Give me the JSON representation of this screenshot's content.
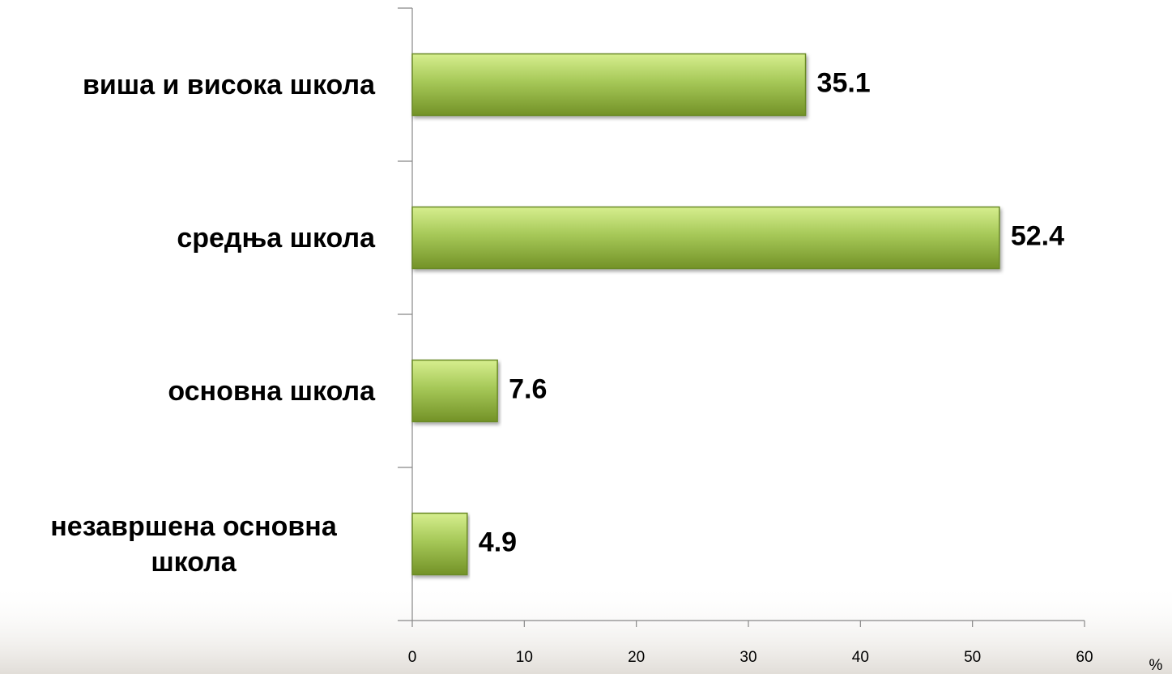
{
  "chart_data": {
    "type": "bar",
    "orientation": "horizontal",
    "categories": [
      "виша и висока школа",
      "средња школа",
      "основна школа",
      "незавршена основна школа"
    ],
    "values": [
      35.1,
      52.4,
      7.6,
      4.9
    ],
    "color": "#9bbb59",
    "x_label": "%",
    "xlim": [
      0,
      60
    ],
    "xticks": [
      0,
      10,
      20,
      30,
      40,
      50,
      60
    ]
  }
}
